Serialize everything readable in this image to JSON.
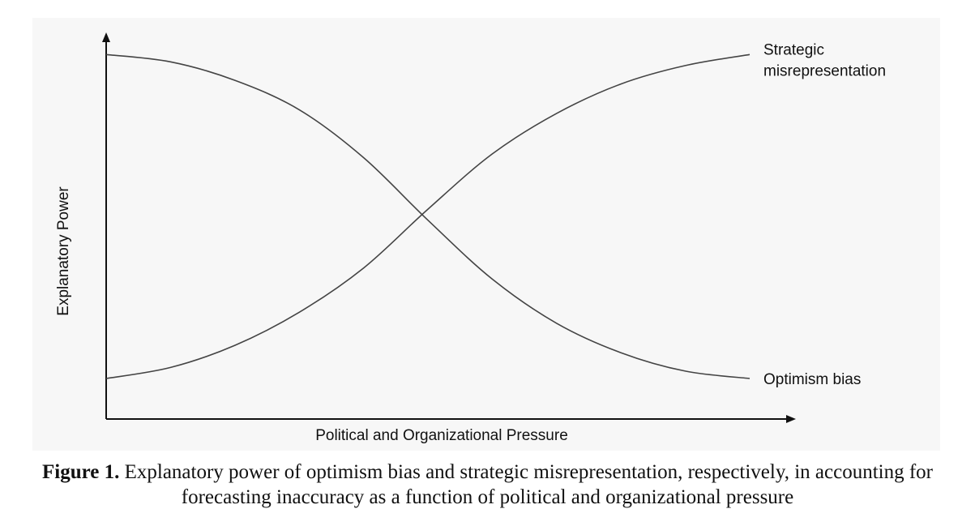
{
  "chart_data": {
    "type": "line",
    "xlabel": "Political and Organizational Pressure",
    "ylabel": "Explanatory Power",
    "x": [
      0,
      0.1,
      0.2,
      0.3,
      0.4,
      0.5,
      0.6,
      0.7,
      0.8,
      0.9,
      1.0
    ],
    "series": [
      {
        "name": "Strategic misrepresentation",
        "label_lines": [
          "Strategic",
          "misrepresentation"
        ],
        "values": [
          0.11,
          0.14,
          0.2,
          0.29,
          0.41,
          0.57,
          0.72,
          0.83,
          0.91,
          0.96,
          0.99
        ]
      },
      {
        "name": "Optimism bias",
        "label_lines": [
          "Optimism bias"
        ],
        "values": [
          0.99,
          0.97,
          0.92,
          0.84,
          0.71,
          0.54,
          0.38,
          0.26,
          0.18,
          0.13,
          0.11
        ]
      }
    ],
    "xlim": [
      0,
      1
    ],
    "ylim": [
      0,
      1.05
    ],
    "grid": false,
    "tick_labels": false
  },
  "caption": {
    "label": "Figure 1.",
    "text": "Explanatory power of optimism bias and strategic misrepresentation, respectively, in accounting for forecasting inaccuracy as a function of political and organizational pressure"
  },
  "colors": {
    "line": "#444444",
    "axis": "#111111",
    "background": "#f7f7f7"
  }
}
